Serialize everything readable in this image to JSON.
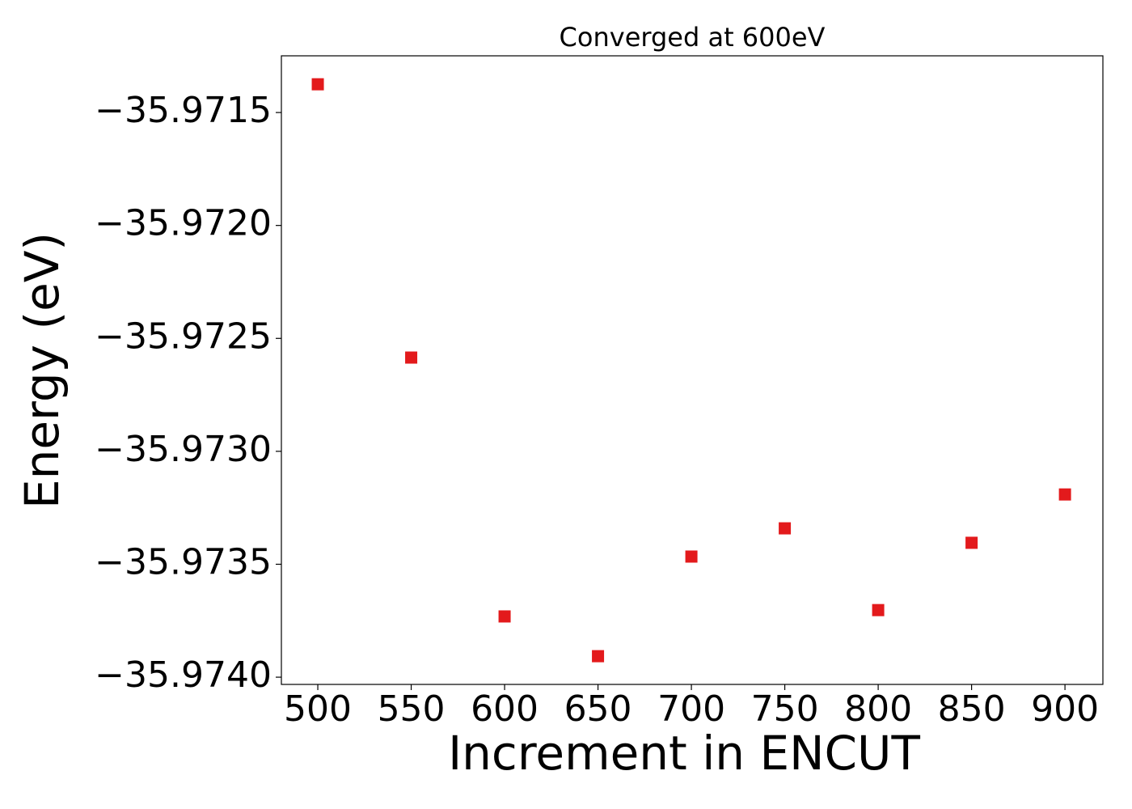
{
  "chart_data": {
    "type": "line",
    "title": "Converged at 600eV",
    "xlabel": "Increment in ENCUT",
    "ylabel": "Energy (eV)",
    "x": [
      500,
      550,
      600,
      650,
      700,
      750,
      800,
      850,
      900
    ],
    "values": [
      -35.971375,
      -35.972585,
      -35.973731,
      -35.973907,
      -35.973466,
      -35.973341,
      -35.973703,
      -35.973405,
      -35.973191
    ],
    "color": "#e31a1c",
    "marker": "square",
    "xlim": [
      480.5,
      920.3
    ],
    "ylim": [
      -35.974032,
      -35.971249
    ],
    "xticks": [
      500,
      550,
      600,
      650,
      700,
      750,
      800,
      850,
      900
    ],
    "yticks": [
      {
        "value": -35.9715,
        "label": "−35.9715"
      },
      {
        "value": -35.972,
        "label": "−35.9720"
      },
      {
        "value": -35.9725,
        "label": "−35.9725"
      },
      {
        "value": -35.973,
        "label": "−35.9730"
      },
      {
        "value": -35.9735,
        "label": "−35.9735"
      },
      {
        "value": -35.974,
        "label": "−35.9740"
      }
    ],
    "grid": false
  }
}
